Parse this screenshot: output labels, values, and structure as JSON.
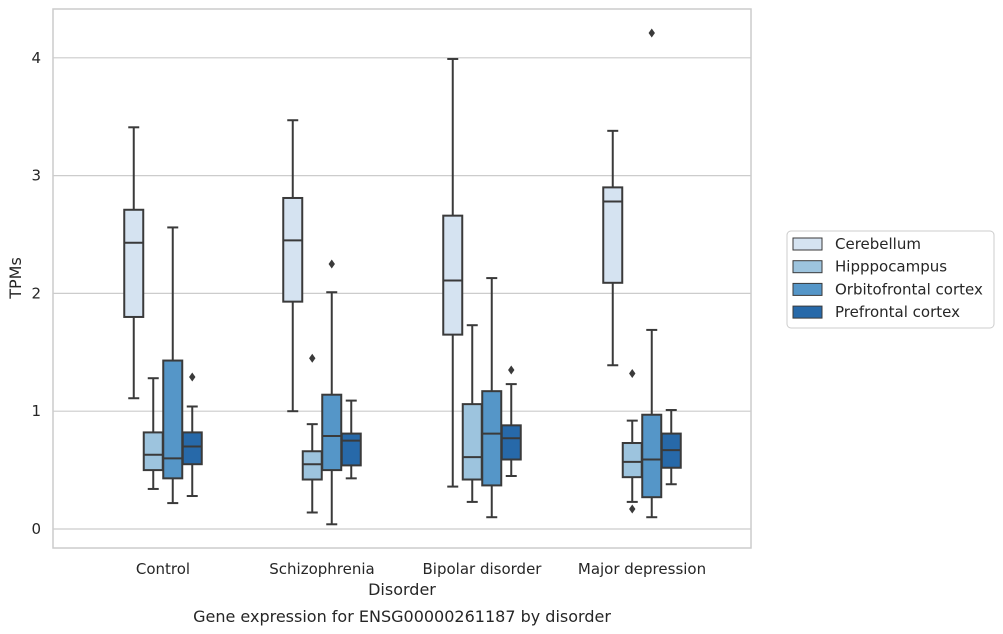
{
  "chart_data": {
    "type": "box",
    "xlabel": "Disorder",
    "ylabel": "TPMs",
    "caption": "Gene expression for ENSG00000261187 by disorder",
    "ylim": [
      -0.15,
      4.4
    ],
    "yticks": [
      0,
      1,
      2,
      3,
      4
    ],
    "grid": "horizontal",
    "legend_position": "right",
    "categories": [
      "Control",
      "Schizophrenia",
      "Bipolar disorder",
      "Major depression"
    ],
    "series": [
      {
        "name": "Cerebellum",
        "color": "#d5e3f1",
        "boxes": [
          {
            "whisker_low": 1.11,
            "q1": 1.8,
            "median": 2.43,
            "q3": 2.71,
            "whisker_high": 3.41,
            "outliers": []
          },
          {
            "whisker_low": 1.0,
            "q1": 1.93,
            "median": 2.45,
            "q3": 2.81,
            "whisker_high": 3.47,
            "outliers": []
          },
          {
            "whisker_low": 0.36,
            "q1": 1.65,
            "median": 2.11,
            "q3": 2.66,
            "whisker_high": 3.99,
            "outliers": []
          },
          {
            "whisker_low": 1.39,
            "q1": 2.09,
            "median": 2.78,
            "q3": 2.9,
            "whisker_high": 3.38,
            "outliers": []
          }
        ]
      },
      {
        "name": "Hipppocampus",
        "color": "#9dc4de",
        "boxes": [
          {
            "whisker_low": 0.34,
            "q1": 0.5,
            "median": 0.63,
            "q3": 0.82,
            "whisker_high": 1.28,
            "outliers": []
          },
          {
            "whisker_low": 0.14,
            "q1": 0.42,
            "median": 0.55,
            "q3": 0.66,
            "whisker_high": 0.89,
            "outliers": [
              1.45
            ]
          },
          {
            "whisker_low": 0.23,
            "q1": 0.42,
            "median": 0.61,
            "q3": 1.06,
            "whisker_high": 1.73,
            "outliers": []
          },
          {
            "whisker_low": 0.23,
            "q1": 0.44,
            "median": 0.57,
            "q3": 0.73,
            "whisker_high": 0.92,
            "outliers": [
              1.32,
              0.17
            ]
          }
        ]
      },
      {
        "name": "Orbitofrontal cortex",
        "color": "#5596c8",
        "boxes": [
          {
            "whisker_low": 0.22,
            "q1": 0.43,
            "median": 0.6,
            "q3": 1.43,
            "whisker_high": 2.56,
            "outliers": []
          },
          {
            "whisker_low": 0.04,
            "q1": 0.5,
            "median": 0.79,
            "q3": 1.14,
            "whisker_high": 2.01,
            "outliers": [
              2.25
            ]
          },
          {
            "whisker_low": 0.1,
            "q1": 0.37,
            "median": 0.81,
            "q3": 1.17,
            "whisker_high": 2.13,
            "outliers": []
          },
          {
            "whisker_low": 0.1,
            "q1": 0.27,
            "median": 0.59,
            "q3": 0.97,
            "whisker_high": 1.69,
            "outliers": [
              4.21
            ]
          }
        ]
      },
      {
        "name": "Prefrontal cortex",
        "color": "#2769a9",
        "boxes": [
          {
            "whisker_low": 0.28,
            "q1": 0.55,
            "median": 0.7,
            "q3": 0.82,
            "whisker_high": 1.04,
            "outliers": [
              1.29
            ]
          },
          {
            "whisker_low": 0.43,
            "q1": 0.54,
            "median": 0.75,
            "q3": 0.81,
            "whisker_high": 1.09,
            "outliers": []
          },
          {
            "whisker_low": 0.45,
            "q1": 0.59,
            "median": 0.77,
            "q3": 0.88,
            "whisker_high": 1.23,
            "outliers": [
              1.35
            ]
          },
          {
            "whisker_low": 0.38,
            "q1": 0.52,
            "median": 0.67,
            "q3": 0.81,
            "whisker_high": 1.01,
            "outliers": []
          }
        ]
      }
    ]
  }
}
